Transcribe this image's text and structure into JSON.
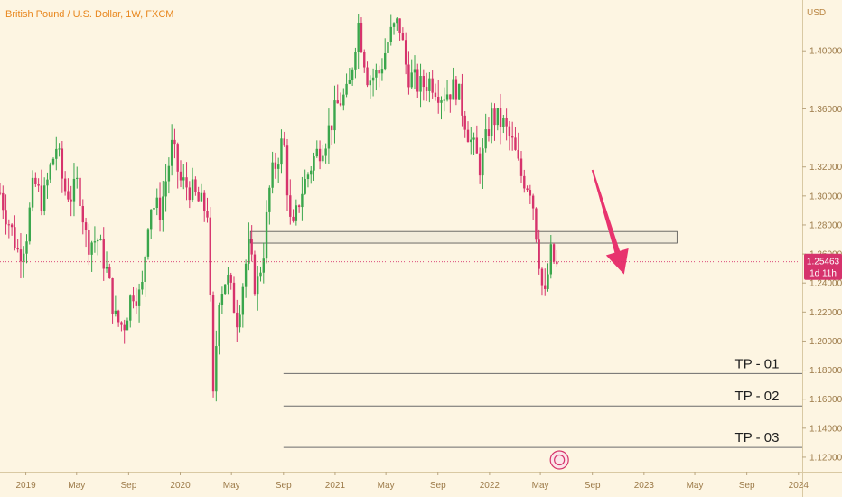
{
  "header": {
    "title": "British Pound / U.S. Dollar, 1W, FXCM"
  },
  "axis": {
    "currency": "USD",
    "y_ticks": [
      1.4,
      1.36,
      1.32,
      1.3,
      1.28,
      1.26,
      1.24,
      1.22,
      1.2,
      1.18,
      1.16,
      1.14,
      1.12
    ],
    "x_ticks": [
      "2019",
      "May",
      "Sep",
      "2020",
      "May",
      "Sep",
      "2021",
      "May",
      "Sep",
      "2022",
      "May",
      "Sep",
      "2023",
      "May",
      "Sep",
      "2024"
    ]
  },
  "price_label": {
    "value": "1.25463",
    "countdown": "1d 11h"
  },
  "targets": [
    {
      "label": "TP - 01",
      "price": 1.1776
    },
    {
      "label": "TP - 02",
      "price": 1.1553
    },
    {
      "label": "TP - 03",
      "price": 1.1267
    }
  ],
  "colors": {
    "background": "#fdf5e2",
    "up": "#3aa64c",
    "down": "#d6336c",
    "title": "#e8871e",
    "arrow": "#e8336e",
    "price_tag": "#d6336c"
  },
  "chart_data": {
    "type": "candlestick",
    "instrument": "GBP/USD",
    "timeframe": "1W",
    "ylim": [
      1.11,
      1.435
    ],
    "x_range": [
      "2018-11-01",
      "2024-01-10"
    ],
    "current_price": 1.25463,
    "resistance_zone": {
      "from": "2020-06-15",
      "to": "2023-03-20",
      "low": 1.2675,
      "high": 1.2755
    },
    "projection_arrow": {
      "from_date": "2022-09-01",
      "from_price": 1.318,
      "to_date": "2022-11-15",
      "to_price": 1.246
    },
    "price_path": [
      [
        "2018-11-01",
        1.302
      ],
      [
        "2018-11-15",
        1.288
      ],
      [
        "2018-12-01",
        1.274
      ],
      [
        "2018-12-15",
        1.26
      ],
      [
        "2019-01-01",
        1.27
      ],
      [
        "2019-01-20",
        1.31
      ],
      [
        "2019-02-10",
        1.295
      ],
      [
        "2019-03-01",
        1.32
      ],
      [
        "2019-03-15",
        1.335
      ],
      [
        "2019-04-01",
        1.305
      ],
      [
        "2019-04-20",
        1.3
      ],
      [
        "2019-05-05",
        1.31
      ],
      [
        "2019-05-25",
        1.268
      ],
      [
        "2019-06-20",
        1.27
      ],
      [
        "2019-07-10",
        1.25
      ],
      [
        "2019-08-01",
        1.215
      ],
      [
        "2019-08-20",
        1.21
      ],
      [
        "2019-09-10",
        1.235
      ],
      [
        "2019-10-01",
        1.23
      ],
      [
        "2019-10-20",
        1.295
      ],
      [
        "2019-11-15",
        1.29
      ],
      [
        "2019-12-13",
        1.335
      ],
      [
        "2020-01-01",
        1.31
      ],
      [
        "2020-01-25",
        1.305
      ],
      [
        "2020-02-15",
        1.295
      ],
      [
        "2020-03-05",
        1.29
      ],
      [
        "2020-03-20",
        1.15
      ],
      [
        "2020-03-30",
        1.23
      ],
      [
        "2020-04-20",
        1.245
      ],
      [
        "2020-05-15",
        1.215
      ],
      [
        "2020-06-10",
        1.265
      ],
      [
        "2020-06-28",
        1.235
      ],
      [
        "2020-07-15",
        1.26
      ],
      [
        "2020-08-01",
        1.31
      ],
      [
        "2020-09-01",
        1.34
      ],
      [
        "2020-09-20",
        1.27
      ],
      [
        "2020-10-10",
        1.3
      ],
      [
        "2020-11-10",
        1.325
      ],
      [
        "2020-12-10",
        1.34
      ],
      [
        "2021-01-10",
        1.365
      ],
      [
        "2021-02-01",
        1.37
      ],
      [
        "2021-02-24",
        1.42
      ],
      [
        "2021-03-20",
        1.38
      ],
      [
        "2021-04-15",
        1.385
      ],
      [
        "2021-05-10",
        1.41
      ],
      [
        "2021-06-01",
        1.42
      ],
      [
        "2021-06-20",
        1.385
      ],
      [
        "2021-07-20",
        1.375
      ],
      [
        "2021-08-15",
        1.38
      ],
      [
        "2021-09-10",
        1.37
      ],
      [
        "2021-10-15",
        1.375
      ],
      [
        "2021-11-15",
        1.34
      ],
      [
        "2021-12-10",
        1.32
      ],
      [
        "2022-01-05",
        1.355
      ],
      [
        "2022-02-01",
        1.35
      ],
      [
        "2022-02-25",
        1.335
      ],
      [
        "2022-03-15",
        1.315
      ],
      [
        "2022-04-10",
        1.305
      ],
      [
        "2022-04-25",
        1.265
      ],
      [
        "2022-05-10",
        1.225
      ],
      [
        "2022-05-25",
        1.26
      ],
      [
        "2022-06-10",
        1.25
      ]
    ]
  }
}
